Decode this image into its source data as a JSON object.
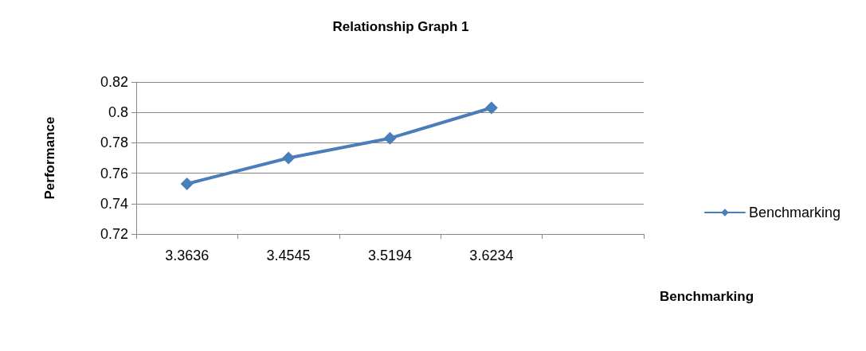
{
  "chart_data": {
    "type": "line",
    "title": "Relationship Graph 1",
    "xlabel": "Benchmarking",
    "ylabel": "Performance",
    "categories": [
      "3.3636",
      "3.4545",
      "3.5194",
      "3.6234",
      null
    ],
    "series": [
      {
        "name": "Benchmarking",
        "color": "#4a7ebb",
        "values": [
          0.753,
          0.77,
          0.783,
          0.803,
          null
        ]
      }
    ],
    "ylim": [
      0.72,
      0.82
    ],
    "yticks": [
      0.72,
      0.74,
      0.76,
      0.78,
      0.8,
      0.82
    ],
    "grid": "y",
    "legend": "right",
    "marker": "diamond",
    "line_style": "solid"
  }
}
